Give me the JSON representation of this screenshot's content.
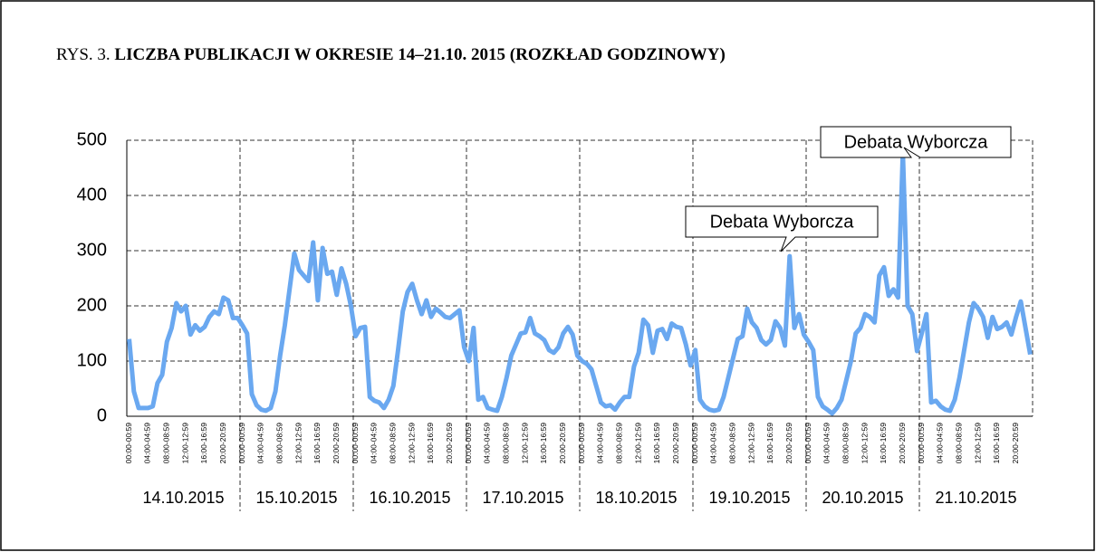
{
  "chart_data": {
    "type": "line",
    "figure_label": "RYS. 3.",
    "title": "LICZBA PUBLIKACJI W OKRESIE 14–21.10. 2015 (ROZKŁAD GODZINOWY)",
    "categories": [
      "00:00-00:59",
      null,
      null,
      null,
      "04:00-04:59",
      null,
      null,
      null,
      "08:00-08:59",
      null,
      null,
      null,
      "12:00-12:59",
      null,
      null,
      null,
      "16:00-16:59",
      null,
      null,
      null,
      "20:00-20:59",
      null,
      null,
      null,
      "00:00-00:59",
      null,
      null,
      null,
      "04:00-04:59",
      null,
      null,
      null,
      "08:00-08:59",
      null,
      null,
      null,
      "12:00-12:59",
      null,
      null,
      null,
      "16:00-16:59",
      null,
      null,
      null,
      "20:00-20:59",
      null,
      null,
      null,
      "00:00-00:59",
      null,
      null,
      null,
      "04:00-04:59",
      null,
      null,
      null,
      "08:00-08:59",
      null,
      null,
      null,
      "12:00-12:59",
      null,
      null,
      null,
      "16:00-16:59",
      null,
      null,
      null,
      "20:00-20:59",
      null,
      null,
      null,
      "00:00-00:59",
      null,
      null,
      null,
      "04:00-04:59",
      null,
      null,
      null,
      "08:00-08:59",
      null,
      null,
      null,
      "12:00-12:59",
      null,
      null,
      null,
      "16:00-16:59",
      null,
      null,
      null,
      "20:00-20:59",
      null,
      null,
      null,
      "00:00-00:59",
      null,
      null,
      null,
      "04:00-04:59",
      null,
      null,
      null,
      "08:00-08:59",
      null,
      null,
      null,
      "12:00-12:59",
      null,
      null,
      null,
      "16:00-16:59",
      null,
      null,
      null,
      "20:00-20:59",
      null,
      null,
      null,
      "00:00-00:59",
      null,
      null,
      null,
      "04:00-04:59",
      null,
      null,
      null,
      "08:00-08:59",
      null,
      null,
      null,
      "12:00-12:59",
      null,
      null,
      null,
      "16:00-16:59",
      null,
      null,
      null,
      "20:00-20:59",
      null,
      null,
      null,
      "00:00-00:59",
      null,
      null,
      null,
      "04:00-04:59",
      null,
      null,
      null,
      "08:00-08:59",
      null,
      null,
      null,
      "12:00-12:59",
      null,
      null,
      null,
      "16:00-16:59",
      null,
      null,
      null,
      "20:00-20:59",
      null,
      null,
      null,
      "00:00-00:59",
      null,
      null,
      null,
      "04:00-04:59",
      null,
      null,
      null,
      "08:00-08:59",
      null,
      null,
      null,
      "12:00-12:59",
      null,
      null,
      null,
      "16:00-16:59",
      null,
      null,
      null,
      "20:00-20:59",
      null,
      null,
      null
    ],
    "groups": [
      "14.10.2015",
      "15.10.2015",
      "16.10.2015",
      "17.10.2015",
      "18.10.2015",
      "19.10.2015",
      "20.10.2015",
      "21.10.2015"
    ],
    "color": "#6aa8f0",
    "values": [
      140,
      45,
      15,
      15,
      15,
      18,
      60,
      75,
      135,
      160,
      205,
      190,
      200,
      148,
      165,
      155,
      162,
      180,
      190,
      185,
      215,
      210,
      178,
      178,
      165,
      150,
      40,
      20,
      12,
      10,
      15,
      45,
      110,
      165,
      230,
      295,
      265,
      255,
      245,
      315,
      210,
      305,
      258,
      262,
      220,
      268,
      240,
      200,
      145,
      160,
      162,
      35,
      28,
      25,
      15,
      30,
      55,
      120,
      190,
      225,
      240,
      210,
      185,
      210,
      180,
      195,
      188,
      180,
      178,
      185,
      192,
      125,
      100,
      160,
      30,
      35,
      15,
      12,
      10,
      35,
      70,
      110,
      130,
      150,
      152,
      178,
      150,
      145,
      138,
      120,
      115,
      125,
      150,
      162,
      148,
      110,
      100,
      95,
      85,
      55,
      25,
      18,
      20,
      12,
      25,
      35,
      35,
      90,
      115,
      175,
      165,
      115,
      155,
      158,
      140,
      168,
      162,
      160,
      130,
      92,
      120,
      30,
      18,
      12,
      10,
      12,
      35,
      70,
      105,
      140,
      145,
      195,
      170,
      160,
      138,
      130,
      138,
      172,
      160,
      128,
      290,
      160,
      185,
      148,
      135,
      120,
      35,
      18,
      12,
      5,
      15,
      30,
      65,
      100,
      150,
      160,
      185,
      180,
      170,
      255,
      270,
      218,
      230,
      215,
      478,
      200,
      185,
      118,
      150,
      185,
      25,
      28,
      18,
      12,
      10,
      30,
      70,
      120,
      170,
      205,
      195,
      180,
      142,
      180,
      158,
      162,
      170,
      148,
      180,
      208,
      160,
      112
    ],
    "annotations": [
      "Debata Wyborcza",
      "Debata Wyborcza"
    ],
    "ylim": [
      0,
      500
    ],
    "yticks": [
      0,
      100,
      200,
      300,
      400,
      500
    ],
    "grid": true
  }
}
